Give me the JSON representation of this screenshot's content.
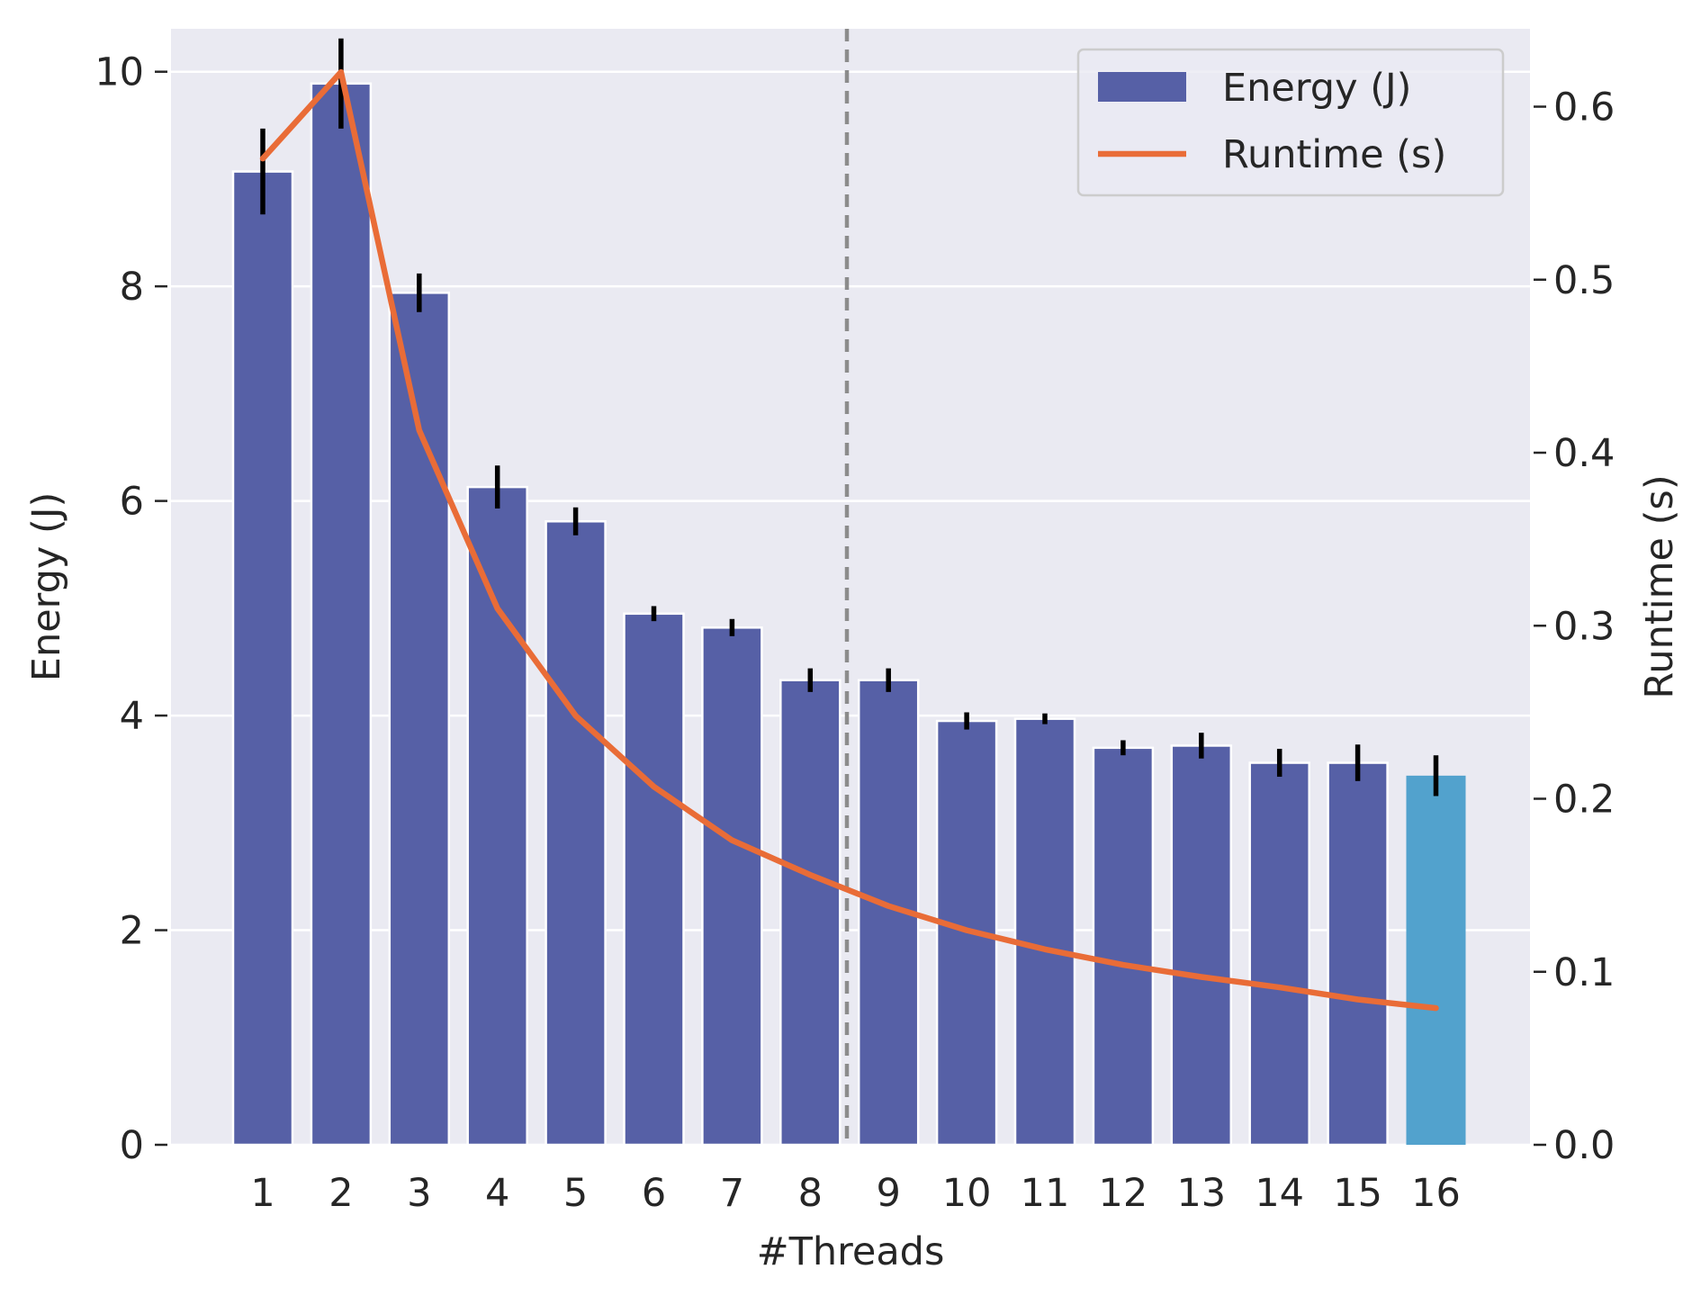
{
  "chart_data": {
    "type": "bar",
    "xlabel": "#Threads",
    "ylabel": "Energy (J)",
    "ylabel_right": "Runtime (s)",
    "categories": [
      "1",
      "2",
      "3",
      "4",
      "5",
      "6",
      "7",
      "8",
      "9",
      "10",
      "11",
      "12",
      "13",
      "14",
      "15",
      "16"
    ],
    "ylim": [
      0,
      10.4
    ],
    "y_right_lim": [
      0,
      0.645
    ],
    "yticks": [
      "0",
      "2",
      "4",
      "6",
      "8",
      "10"
    ],
    "y_right_ticks": [
      "0.0",
      "0.1",
      "0.2",
      "0.3",
      "0.4",
      "0.5",
      "0.6"
    ],
    "grid": true,
    "legend_position": "top-right",
    "divider_after_category": "8",
    "series": [
      {
        "name": "Energy (J)",
        "kind": "bar",
        "axis": "left",
        "color": "#5660a6",
        "highlight_last_color": "#52a2cd",
        "values": [
          9.07,
          9.89,
          7.94,
          6.13,
          5.81,
          4.95,
          4.82,
          4.33,
          4.33,
          3.95,
          3.97,
          3.7,
          3.72,
          3.56,
          3.56,
          3.44
        ],
        "errors": [
          0.4,
          0.42,
          0.18,
          0.2,
          0.13,
          0.07,
          0.08,
          0.11,
          0.11,
          0.08,
          0.05,
          0.07,
          0.12,
          0.13,
          0.17,
          0.19
        ]
      },
      {
        "name": "Runtime (s)",
        "kind": "line",
        "axis": "right",
        "color": "#e96c37",
        "values": [
          0.57,
          0.62,
          0.413,
          0.31,
          0.248,
          0.207,
          0.176,
          0.156,
          0.138,
          0.124,
          0.113,
          0.104,
          0.097,
          0.091,
          0.084,
          0.079
        ]
      }
    ]
  }
}
